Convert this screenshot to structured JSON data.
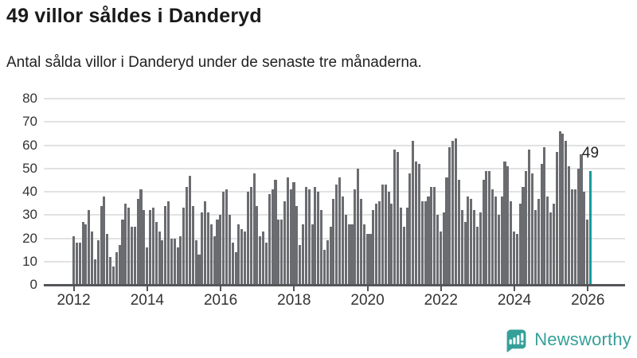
{
  "header": {
    "title": "49 villor såldes i Danderyd",
    "subtitle": "Antal sålda villor i Danderyd under de senaste tre månaderna."
  },
  "chart_data": {
    "type": "bar",
    "title": "49 villor såldes i Danderyd",
    "xlabel": "",
    "ylabel": "",
    "ylim": [
      0,
      80
    ],
    "yticks": [
      0,
      10,
      20,
      30,
      40,
      50,
      60,
      70,
      80
    ],
    "xticks": [
      2012,
      2014,
      2016,
      2018,
      2020,
      2022,
      2024,
      2026
    ],
    "grid": "horizontal",
    "x_start": "2012-01",
    "x_interval": "monthly",
    "bar_color": "#6b6c70",
    "highlight_color": "#169a9a",
    "highlight_last": true,
    "highlight_label": "49",
    "values": [
      21,
      18,
      18,
      27,
      26,
      32,
      23,
      11,
      19,
      34,
      38,
      22,
      12,
      8,
      14,
      17,
      28,
      35,
      33,
      25,
      25,
      37,
      41,
      32,
      16,
      32,
      33,
      27,
      23,
      19,
      34,
      36,
      20,
      20,
      16,
      21,
      33,
      42,
      47,
      34,
      19,
      13,
      31,
      36,
      31,
      26,
      21,
      28,
      30,
      40,
      41,
      30,
      18,
      14,
      26,
      24,
      23,
      40,
      42,
      48,
      34,
      21,
      23,
      18,
      39,
      41,
      45,
      28,
      28,
      36,
      46,
      41,
      44,
      34,
      17,
      26,
      42,
      41,
      26,
      42,
      40,
      32,
      15,
      19,
      25,
      37,
      43,
      46,
      38,
      30,
      26,
      26,
      41,
      50,
      37,
      26,
      22,
      22,
      32,
      35,
      36,
      43,
      43,
      40,
      35,
      58,
      57,
      33,
      25,
      33,
      48,
      62,
      53,
      52,
      36,
      36,
      38,
      42,
      42,
      30,
      23,
      31,
      46,
      59,
      62,
      63,
      45,
      32,
      27,
      38,
      37,
      32,
      25,
      31,
      45,
      49,
      49,
      41,
      38,
      30,
      38,
      53,
      51,
      36,
      23,
      22,
      35,
      42,
      49,
      58,
      48,
      32,
      37,
      52,
      59,
      38,
      31,
      35,
      57,
      66,
      65,
      62,
      51,
      41,
      41,
      50,
      56,
      40,
      28,
      49
    ]
  },
  "footer": {
    "brand": "Newsworthy"
  }
}
